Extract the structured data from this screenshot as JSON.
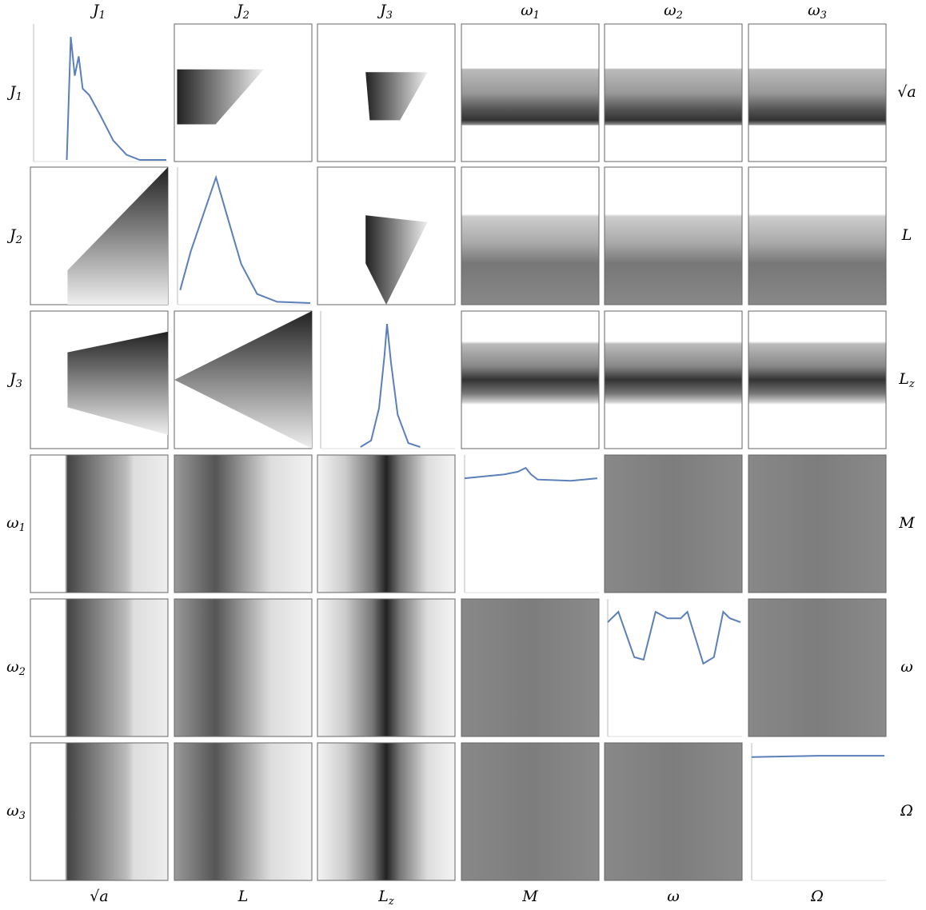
{
  "top_labels": [
    {
      "base": "J",
      "sub": "1"
    },
    {
      "base": "J",
      "sub": "2"
    },
    {
      "base": "J",
      "sub": "3"
    },
    {
      "base": "ω",
      "sub": "1"
    },
    {
      "base": "ω",
      "sub": "2"
    },
    {
      "base": "ω",
      "sub": "3"
    }
  ],
  "left_labels": [
    {
      "base": "J",
      "sub": "1"
    },
    {
      "base": "J",
      "sub": "2"
    },
    {
      "base": "J",
      "sub": "3"
    },
    {
      "base": "ω",
      "sub": "1"
    },
    {
      "base": "ω",
      "sub": "2"
    },
    {
      "base": "ω",
      "sub": "3"
    }
  ],
  "bottom_labels": [
    {
      "base": "√a"
    },
    {
      "base": "L"
    },
    {
      "base": "L",
      "sub": "z"
    },
    {
      "base": "M"
    },
    {
      "base": "ω"
    },
    {
      "base": "Ω"
    }
  ],
  "right_labels": [
    {
      "base": "√a"
    },
    {
      "base": "L"
    },
    {
      "base": "L",
      "sub": "z"
    },
    {
      "base": "M"
    },
    {
      "base": "ω"
    },
    {
      "base": "Ω"
    }
  ]
}
